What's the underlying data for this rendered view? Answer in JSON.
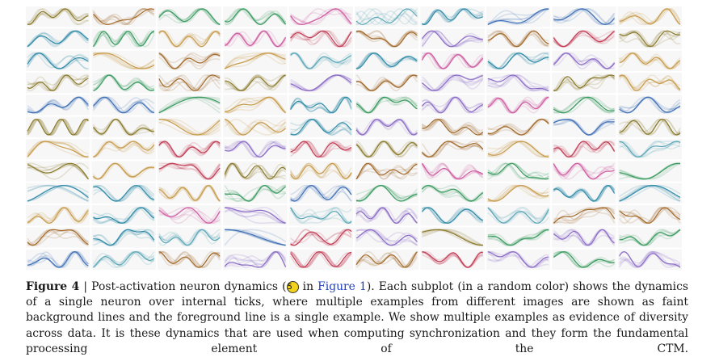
{
  "figure": {
    "grid": {
      "rows": 12,
      "cols": 10
    },
    "palette": [
      "#c79a4a",
      "#3f6fb5",
      "#5aa7b8",
      "#3a9a60",
      "#cf5aa0",
      "#c23a52",
      "#8a7a2a",
      "#8a6ac6",
      "#2f8aa8",
      "#a36a2a"
    ],
    "panel_background": "#f7f7f7"
  },
  "caption": {
    "label": "Figure 4",
    "separator": " | ",
    "part1": "Post-activation neuron dynamics (",
    "circle_number": "5",
    "part2": " in ",
    "ref": "Figure 1",
    "part3": "). Each subplot (in a random color) shows the dynamics of a single neuron over internal ticks, where multiple examples from different images are shown as faint background lines and the foreground line is a single example. We show multiple examples as evidence of diversity across data. It is these dynamics that are used when computing synchronization and they form the fundamental processing element of the CTM."
  }
}
